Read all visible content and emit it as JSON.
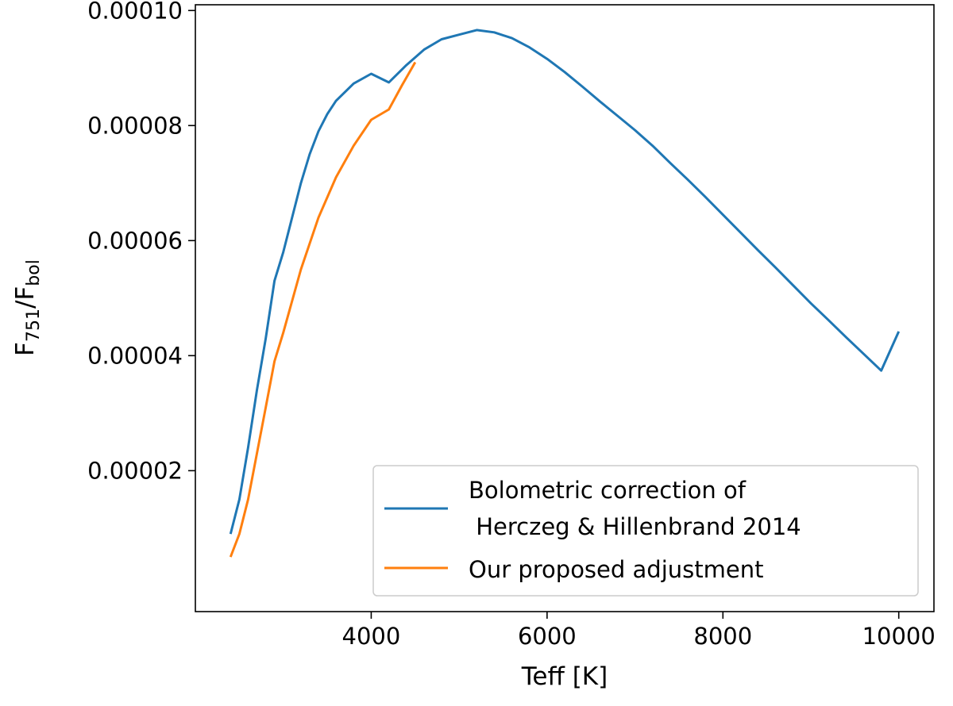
{
  "chart_data": {
    "type": "line",
    "xlabel": "Teff [K]",
    "ylabel": {
      "main": "F",
      "sub1": "751",
      "sep": "/F",
      "sub2": "bol"
    },
    "xlim": [
      2000,
      10400
    ],
    "ylim": [
      -4.5e-06,
      0.000101
    ],
    "x_ticks": [
      4000,
      6000,
      8000,
      10000
    ],
    "x_tick_labels": [
      "4000",
      "6000",
      "8000",
      "10000"
    ],
    "y_ticks": [
      2e-05,
      4e-05,
      6e-05,
      8e-05,
      0.0001
    ],
    "y_tick_labels": [
      "0.00002",
      "0.00004",
      "0.00006",
      "0.00008",
      "0.00010"
    ],
    "legend": {
      "position": "lower-right",
      "entries": [
        {
          "series": 0,
          "lines": [
            "Bolometric correction of",
            " Herczeg & Hillenbrand 2014"
          ]
        },
        {
          "series": 1,
          "lines": [
            "Our proposed adjustment"
          ]
        }
      ]
    },
    "series": [
      {
        "color": "#1f77b4",
        "x": [
          2400,
          2500,
          2600,
          2700,
          2800,
          2900,
          3000,
          3100,
          3200,
          3300,
          3400,
          3500,
          3600,
          3800,
          4000,
          4200,
          4400,
          4600,
          4800,
          5000,
          5200,
          5400,
          5600,
          5800,
          6000,
          6200,
          6400,
          6600,
          6800,
          7000,
          7200,
          7400,
          7600,
          7800,
          8000,
          8200,
          8400,
          8600,
          8800,
          9000,
          9200,
          9400,
          9600,
          9800,
          10000
        ],
        "y": [
          9e-06,
          1.5e-05,
          2.4e-05,
          3.4e-05,
          4.3e-05,
          5.3e-05,
          5.8e-05,
          6.4e-05,
          7e-05,
          7.5e-05,
          7.9e-05,
          8.2e-05,
          8.43e-05,
          8.73e-05,
          8.9e-05,
          8.75e-05,
          9.05e-05,
          9.32e-05,
          9.5e-05,
          9.58e-05,
          9.66e-05,
          9.62e-05,
          9.52e-05,
          9.36e-05,
          9.16e-05,
          8.93e-05,
          8.68e-05,
          8.42e-05,
          8.17e-05,
          7.92e-05,
          7.65e-05,
          7.35e-05,
          7.06e-05,
          6.76e-05,
          6.45e-05,
          6.14e-05,
          5.83e-05,
          5.53e-05,
          5.22e-05,
          4.91e-05,
          4.62e-05,
          4.32e-05,
          4.03e-05,
          3.74e-05,
          4.42e-05
        ]
      },
      {
        "color": "#ff7f0e",
        "x": [
          2400,
          2500,
          2600,
          2700,
          2800,
          2900,
          3000,
          3200,
          3400,
          3600,
          3800,
          4000,
          4200,
          4350,
          4500
        ],
        "y": [
          5e-06,
          9e-06,
          1.5e-05,
          2.3e-05,
          3.1e-05,
          3.9e-05,
          4.4e-05,
          5.5e-05,
          6.4e-05,
          7.1e-05,
          7.65e-05,
          8.1e-05,
          8.28e-05,
          8.7e-05,
          9.1e-05
        ]
      }
    ]
  }
}
